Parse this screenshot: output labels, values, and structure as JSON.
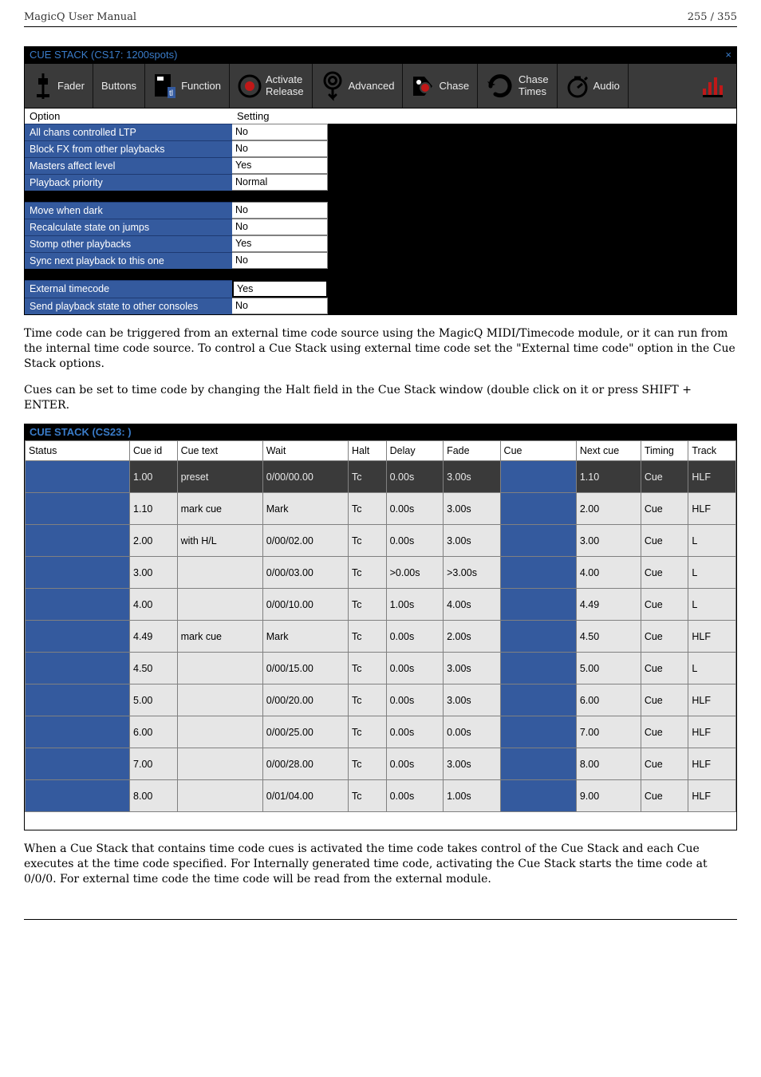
{
  "header": {
    "left": "MagicQ User Manual",
    "right": "255 / 355"
  },
  "panel1": {
    "title": "CUE STACK (CS17: 1200spots)",
    "close_glyph": "×",
    "tabs": {
      "fader": {
        "label": "Fader"
      },
      "buttons": {
        "label": "Buttons"
      },
      "function": {
        "label": "Function"
      },
      "activate": {
        "label1": "Activate",
        "label2": "Release"
      },
      "advanced": {
        "label": "Advanced"
      },
      "chase": {
        "label": "Chase"
      },
      "chase_times": {
        "label1": "Chase",
        "label2": "Times"
      },
      "audio": {
        "label": "Audio"
      }
    },
    "heading_option": "Option",
    "heading_setting": "Setting",
    "group1": [
      {
        "option": "All chans controlled LTP",
        "value": "No"
      },
      {
        "option": "Block FX from other playbacks",
        "value": "No"
      },
      {
        "option": "Masters affect level",
        "value": "Yes"
      },
      {
        "option": "Playback priority",
        "value": "Normal"
      }
    ],
    "group2": [
      {
        "option": "Move when dark",
        "value": "No"
      },
      {
        "option": "Recalculate state on jumps",
        "value": "No"
      },
      {
        "option": "Stomp other playbacks",
        "value": "Yes"
      },
      {
        "option": "Sync next playback to this one",
        "value": "No"
      }
    ],
    "group3": [
      {
        "option": "External timecode",
        "value": "Yes",
        "boxed": true
      },
      {
        "option": "Send playback state to other consoles",
        "value": "No"
      }
    ]
  },
  "para1": "Time code can be triggered from an external time code source using the MagicQ MIDI/Timecode module, or it can run from the internal time code source. To control a Cue Stack using external time code set the \"External time code\" option in the Cue Stack options.",
  "para2": "Cues can be set to time code by changing the Halt field in the Cue Stack window (double click on it or press SHIFT + ENTER.",
  "panel2": {
    "title": "CUE STACK (CS23: )",
    "columns": [
      "Status",
      "Cue id",
      "Cue text",
      "Wait",
      "Halt",
      "Delay",
      "Fade",
      "Cue",
      "Next cue",
      "Timing",
      "Track"
    ],
    "rows": [
      {
        "highlight": true,
        "status": "",
        "cueid": "1.00",
        "cuetext": "preset",
        "wait": "0/00/00.00",
        "halt": "Tc",
        "delay": "0.00s",
        "fade": "3.00s",
        "cue": "",
        "next": "1.10",
        "timing": "Cue",
        "track": "HLF"
      },
      {
        "status": "",
        "cueid": "1.10",
        "cuetext": "mark cue",
        "wait": "Mark",
        "halt": "Tc",
        "delay": "0.00s",
        "fade": "3.00s",
        "cue": "",
        "next": "2.00",
        "timing": "Cue",
        "track": "HLF"
      },
      {
        "status": "",
        "cueid": "2.00",
        "cuetext": "with H/L",
        "wait": "0/00/02.00",
        "halt": "Tc",
        "delay": "0.00s",
        "fade": "3.00s",
        "cue": "",
        "next": "3.00",
        "timing": "Cue",
        "track": "L"
      },
      {
        "status": "",
        "cueid": "3.00",
        "cuetext": "",
        "wait": "0/00/03.00",
        "halt": "Tc",
        "delay": ">0.00s",
        "fade": ">3.00s",
        "cue": "",
        "next": "4.00",
        "timing": "Cue",
        "track": "L"
      },
      {
        "status": "",
        "cueid": "4.00",
        "cuetext": "",
        "wait": "0/00/10.00",
        "halt": "Tc",
        "delay": "1.00s",
        "fade": "4.00s",
        "cue": "",
        "next": "4.49",
        "timing": "Cue",
        "track": "L"
      },
      {
        "status": "",
        "cueid": "4.49",
        "cuetext": "mark cue",
        "wait": "Mark",
        "halt": "Tc",
        "delay": "0.00s",
        "fade": "2.00s",
        "cue": "",
        "next": "4.50",
        "timing": "Cue",
        "track": "HLF"
      },
      {
        "status": "",
        "cueid": "4.50",
        "cuetext": "",
        "wait": "0/00/15.00",
        "halt": "Tc",
        "delay": "0.00s",
        "fade": "3.00s",
        "cue": "",
        "next": "5.00",
        "timing": "Cue",
        "track": "L"
      },
      {
        "status": "",
        "cueid": "5.00",
        "cuetext": "",
        "wait": "0/00/20.00",
        "halt": "Tc",
        "delay": "0.00s",
        "fade": "3.00s",
        "cue": "",
        "next": "6.00",
        "timing": "Cue",
        "track": "HLF"
      },
      {
        "status": "",
        "cueid": "6.00",
        "cuetext": "",
        "wait": "0/00/25.00",
        "halt": "Tc",
        "delay": "0.00s",
        "fade": "0.00s",
        "cue": "",
        "next": "7.00",
        "timing": "Cue",
        "track": "HLF"
      },
      {
        "status": "",
        "cueid": "7.00",
        "cuetext": "",
        "wait": "0/00/28.00",
        "halt": "Tc",
        "delay": "0.00s",
        "fade": "3.00s",
        "cue": "",
        "next": "8.00",
        "timing": "Cue",
        "track": "HLF"
      },
      {
        "status": "",
        "cueid": "8.00",
        "cuetext": "",
        "wait": "0/01/04.00",
        "halt": "Tc",
        "delay": "0.00s",
        "fade": "1.00s",
        "cue": "",
        "next": "9.00",
        "timing": "Cue",
        "track": "HLF"
      }
    ]
  },
  "para3": "When a Cue Stack that contains time code cues is activated the time code takes control of the Cue Stack and each Cue executes at the time code specified. For Internally generated time code, activating the Cue Stack starts the time code at 0/0/0. For external time code the time code will be read from the external module.",
  "colors": {
    "tab_bg": "#3a3a3a",
    "option_bg": "#345a9e",
    "title_fg": "#3a7cc9",
    "cell_light": "#e6e6e6",
    "border": "#808080"
  }
}
